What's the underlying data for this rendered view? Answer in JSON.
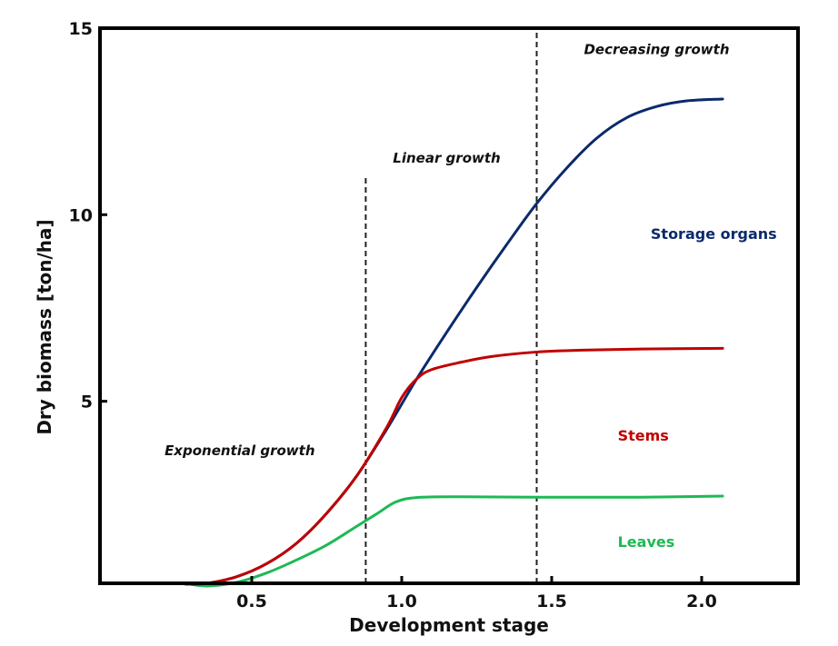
{
  "chart_data": {
    "type": "line",
    "title": "",
    "xlabel": "Development stage",
    "ylabel": "Dry biomass [ton/ha]",
    "xlim": [
      0,
      2.25
    ],
    "ylim": [
      0,
      15
    ],
    "grid": false,
    "x_ticks": [
      0.5,
      1.0,
      1.5,
      2.0
    ],
    "x_tick_labels": [
      "0.5",
      "1.0",
      "1.5",
      "2.0"
    ],
    "y_ticks": [
      5,
      10,
      15
    ],
    "y_tick_labels": [
      "5",
      "10",
      "15"
    ],
    "phase_boundaries": [
      {
        "x": 0.88,
        "y_top": 11.0
      },
      {
        "x": 1.45,
        "y_top": 15.0
      }
    ],
    "phase_labels": [
      {
        "text": "Exponential growth",
        "x": 0.46,
        "y": 3.55
      },
      {
        "text": "Linear growth",
        "x": 1.15,
        "y": 11.4
      },
      {
        "text": "Decreasing growth",
        "x": 1.85,
        "y": 14.3
      }
    ],
    "series": [
      {
        "name": "Storage organs",
        "color": "#0b2a6b",
        "label_pos": {
          "x": 1.83,
          "y": 9.35
        },
        "points": [
          [
            0.28,
            0.1
          ],
          [
            0.35,
            0.12
          ],
          [
            0.45,
            0.3
          ],
          [
            0.55,
            0.65
          ],
          [
            0.65,
            1.2
          ],
          [
            0.75,
            2.0
          ],
          [
            0.85,
            3.0
          ],
          [
            0.95,
            4.25
          ],
          [
            1.05,
            5.6
          ],
          [
            1.15,
            6.85
          ],
          [
            1.25,
            8.05
          ],
          [
            1.35,
            9.2
          ],
          [
            1.45,
            10.3
          ],
          [
            1.55,
            11.25
          ],
          [
            1.65,
            12.05
          ],
          [
            1.75,
            12.6
          ],
          [
            1.85,
            12.9
          ],
          [
            1.95,
            13.05
          ],
          [
            2.07,
            13.1
          ]
        ]
      },
      {
        "name": "Stems",
        "color": "#c00000",
        "label_pos": {
          "x": 1.72,
          "y": 3.95
        },
        "points": [
          [
            0.28,
            0.1
          ],
          [
            0.35,
            0.12
          ],
          [
            0.45,
            0.3
          ],
          [
            0.55,
            0.65
          ],
          [
            0.65,
            1.2
          ],
          [
            0.75,
            2.0
          ],
          [
            0.85,
            3.0
          ],
          [
            0.95,
            4.3
          ],
          [
            1.0,
            5.1
          ],
          [
            1.05,
            5.6
          ],
          [
            1.1,
            5.85
          ],
          [
            1.2,
            6.05
          ],
          [
            1.3,
            6.2
          ],
          [
            1.45,
            6.32
          ],
          [
            1.6,
            6.37
          ],
          [
            1.8,
            6.4
          ],
          [
            2.07,
            6.42
          ]
        ]
      },
      {
        "name": "Leaves",
        "color": "#1db954",
        "label_pos": {
          "x": 1.72,
          "y": 1.1
        },
        "points": [
          [
            0.28,
            0.12
          ],
          [
            0.35,
            0.05
          ],
          [
            0.45,
            0.15
          ],
          [
            0.55,
            0.4
          ],
          [
            0.65,
            0.75
          ],
          [
            0.75,
            1.15
          ],
          [
            0.85,
            1.65
          ],
          [
            0.92,
            2.0
          ],
          [
            0.98,
            2.3
          ],
          [
            1.05,
            2.42
          ],
          [
            1.2,
            2.44
          ],
          [
            1.45,
            2.43
          ],
          [
            1.8,
            2.43
          ],
          [
            2.07,
            2.46
          ]
        ]
      }
    ]
  }
}
